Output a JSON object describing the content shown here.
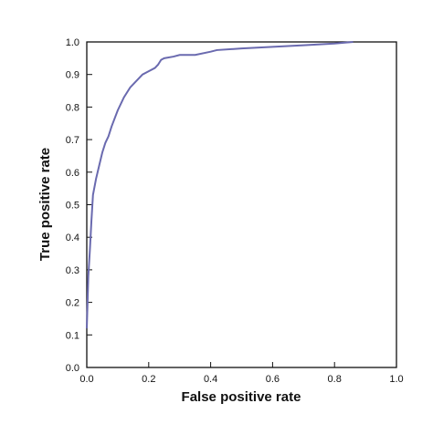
{
  "chart_data": {
    "type": "line",
    "title": "",
    "xlabel": "False positive rate",
    "ylabel": "True positive rate",
    "xlim": [
      0,
      1
    ],
    "ylim": [
      0,
      1
    ],
    "grid": false,
    "x_ticks": [
      "0.0",
      "0.2",
      "0.4",
      "0.6",
      "0.8",
      "1.0"
    ],
    "y_ticks": [
      "0.0",
      "0.1",
      "0.2",
      "0.3",
      "0.4",
      "0.5",
      "0.6",
      "0.7",
      "0.8",
      "0.9",
      "1.0"
    ],
    "colors": {
      "series": "#6a6aaf",
      "axis": "#111111"
    },
    "series": [
      {
        "x": [
          0.0,
          0.005,
          0.01,
          0.015,
          0.02,
          0.03,
          0.04,
          0.05,
          0.06,
          0.07,
          0.08,
          0.1,
          0.12,
          0.14,
          0.16,
          0.18,
          0.2,
          0.22,
          0.23,
          0.24,
          0.25,
          0.28,
          0.3,
          0.35,
          0.4,
          0.42,
          0.5,
          0.6,
          0.7,
          0.8,
          0.86
        ],
        "y": [
          0.12,
          0.28,
          0.36,
          0.45,
          0.53,
          0.58,
          0.62,
          0.66,
          0.69,
          0.71,
          0.74,
          0.79,
          0.83,
          0.86,
          0.88,
          0.9,
          0.91,
          0.92,
          0.93,
          0.945,
          0.95,
          0.955,
          0.96,
          0.96,
          0.97,
          0.975,
          0.98,
          0.985,
          0.99,
          0.995,
          1.0
        ]
      }
    ]
  }
}
